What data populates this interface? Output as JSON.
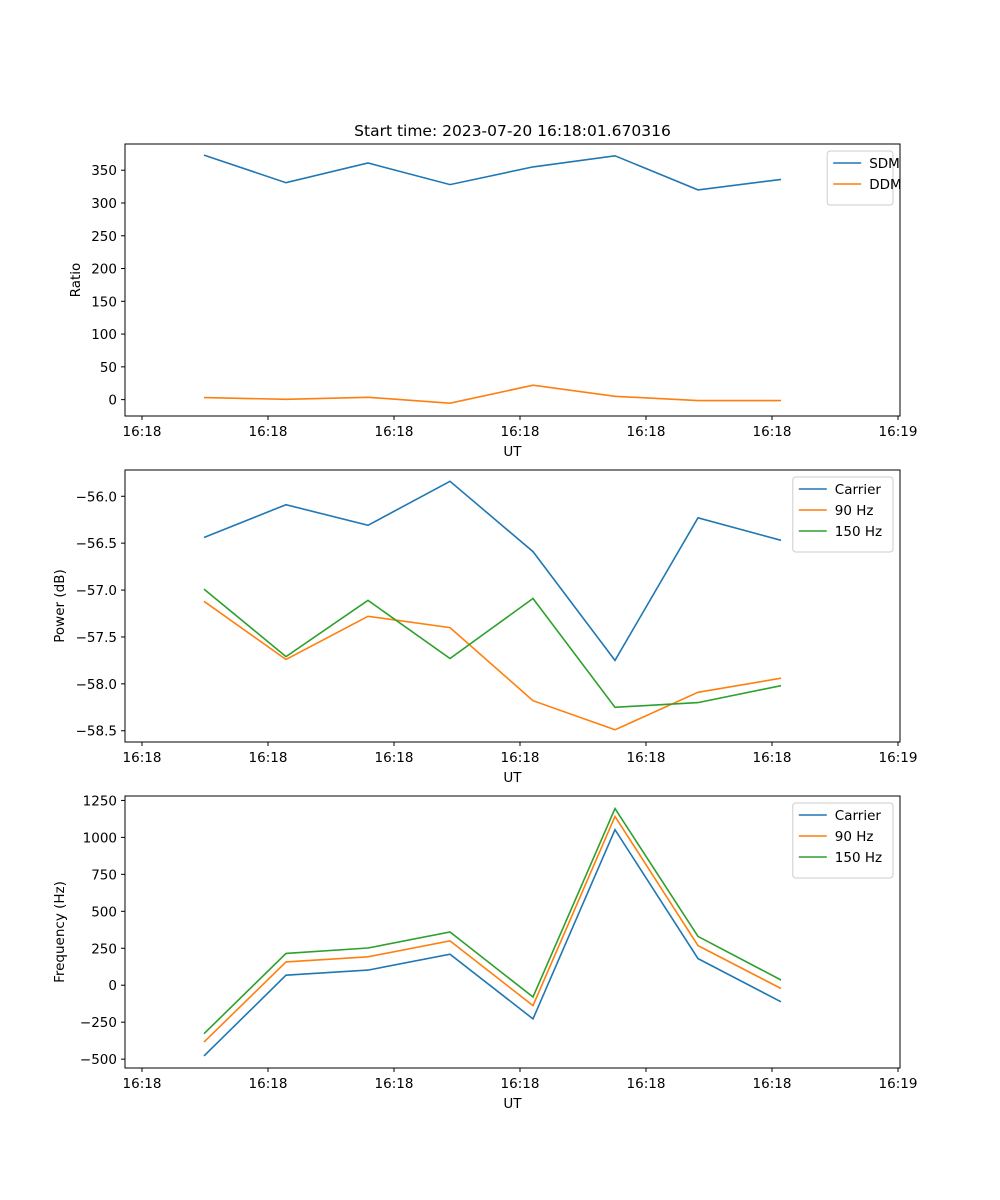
{
  "figure_title": "Start time: 2023-07-20 16:18:01.670316",
  "colors": {
    "blue": "#1f77b4",
    "orange": "#ff7f0e",
    "green": "#2ca02c",
    "axis": "#000000",
    "legend_border": "#cccccc"
  },
  "chart_data": [
    {
      "type": "line",
      "title": "Start time: 2023-07-20 16:18:01.670316",
      "xlabel": "UT",
      "ylabel": "Ratio",
      "x_ticks": [
        "16:18",
        "16:18",
        "16:18",
        "16:18",
        "16:18",
        "16:18",
        "16:19"
      ],
      "y_ticks": [
        0,
        50,
        100,
        150,
        200,
        250,
        300,
        350
      ],
      "ylim": [
        -25,
        390
      ],
      "legend_position": "top-right",
      "series": [
        {
          "name": "SDM",
          "color": "#1f77b4",
          "values": [
            373,
            331,
            361,
            328,
            355,
            372,
            320,
            336
          ]
        },
        {
          "name": "DDM",
          "color": "#ff7f0e",
          "values": [
            3,
            0.5,
            3.5,
            -5.5,
            22,
            5,
            -1.5,
            -1.5
          ]
        }
      ]
    },
    {
      "type": "line",
      "title": "",
      "xlabel": "UT",
      "ylabel": "Power (dB)",
      "x_ticks": [
        "16:18",
        "16:18",
        "16:18",
        "16:18",
        "16:18",
        "16:18",
        "16:19"
      ],
      "y_ticks": [
        -56.0,
        -56.5,
        -57.0,
        -57.5,
        -58.0,
        -58.5
      ],
      "ylim": [
        -58.62,
        -55.72
      ],
      "legend_position": "top-right",
      "series": [
        {
          "name": "Carrier",
          "color": "#1f77b4",
          "values": [
            -56.44,
            -56.09,
            -56.31,
            -55.84,
            -56.59,
            -57.75,
            -56.23,
            -56.47
          ]
        },
        {
          "name": "90 Hz",
          "color": "#ff7f0e",
          "values": [
            -57.12,
            -57.74,
            -57.28,
            -57.4,
            -58.18,
            -58.49,
            -58.09,
            -57.94
          ]
        },
        {
          "name": "150 Hz",
          "color": "#2ca02c",
          "values": [
            -56.99,
            -57.71,
            -57.11,
            -57.73,
            -57.09,
            -58.25,
            -58.2,
            -58.02
          ]
        }
      ]
    },
    {
      "type": "line",
      "title": "",
      "xlabel": "UT",
      "ylabel": "Frequency (Hz)",
      "x_ticks": [
        "16:18",
        "16:18",
        "16:18",
        "16:18",
        "16:18",
        "16:18",
        "16:19"
      ],
      "y_ticks": [
        1250,
        1000,
        750,
        500,
        250,
        0,
        -250,
        -500
      ],
      "ylim": [
        -560,
        1280
      ],
      "legend_position": "top-right",
      "series": [
        {
          "name": "Carrier",
          "color": "#1f77b4",
          "values": [
            -478,
            68,
            102,
            210,
            -228,
            1052,
            180,
            -112
          ]
        },
        {
          "name": "90 Hz",
          "color": "#ff7f0e",
          "values": [
            -385,
            158,
            192,
            300,
            -138,
            1142,
            268,
            -22
          ]
        },
        {
          "name": "150 Hz",
          "color": "#2ca02c",
          "values": [
            -328,
            215,
            252,
            360,
            -80,
            1195,
            330,
            35
          ]
        }
      ]
    }
  ]
}
